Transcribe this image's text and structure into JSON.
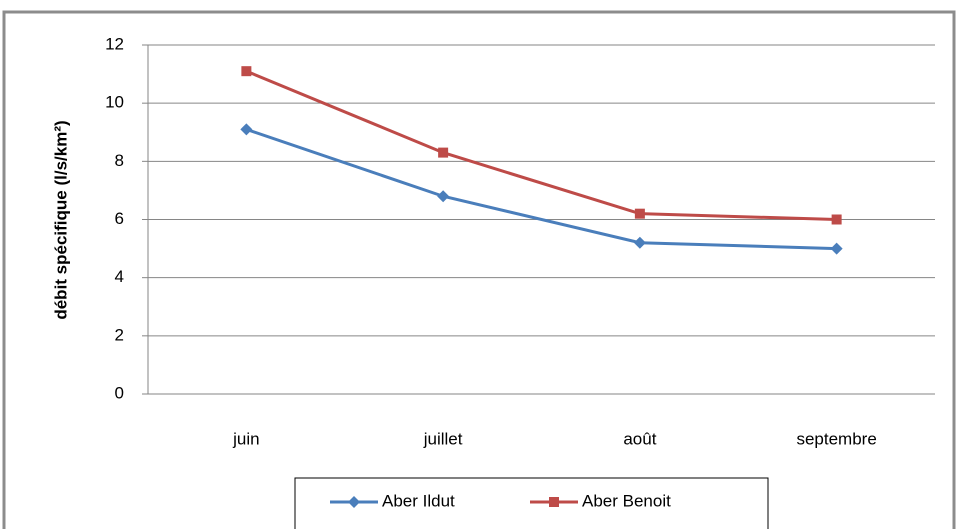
{
  "chart_data": {
    "type": "line",
    "ylabel": "débit spécifique (l/s/km²)",
    "categories": [
      "juin",
      "juillet",
      "août",
      "septembre"
    ],
    "series": [
      {
        "name": "Aber Ildut",
        "color": "#4a7ebb",
        "marker": "diamond",
        "values": [
          9.1,
          6.8,
          5.2,
          5.0
        ]
      },
      {
        "name": "Aber Benoit",
        "color": "#be4b48",
        "marker": "square",
        "values": [
          11.1,
          8.3,
          6.2,
          6.0
        ]
      }
    ],
    "ylim": [
      0,
      12
    ],
    "yticks": [
      0,
      2,
      4,
      6,
      8,
      10,
      12
    ],
    "grid": true,
    "legend": "bottom"
  }
}
